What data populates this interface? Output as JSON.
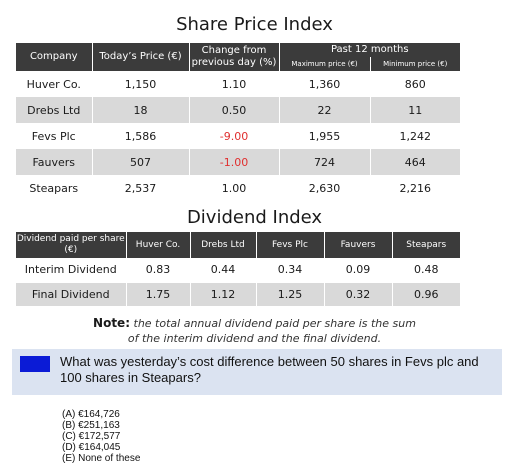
{
  "share": {
    "title": "Share Price Index",
    "headers": {
      "company": "Company",
      "today": "Today’s Price (€)",
      "change": "Change from previous day (%)",
      "past": "Past 12 months",
      "max": "Maximum price (€)",
      "min": "Minimum price (€)"
    },
    "rows": [
      {
        "company": "Huver Co.",
        "today": "1,150",
        "change": "1.10",
        "max": "1,360",
        "min": "860"
      },
      {
        "company": "Drebs Ltd",
        "today": "18",
        "change": "0.50",
        "max": "22",
        "min": "11"
      },
      {
        "company": "Fevs Plc",
        "today": "1,586",
        "change": "-9.00",
        "max": "1,955",
        "min": "1,242"
      },
      {
        "company": "Fauvers",
        "today": "507",
        "change": "-1.00",
        "max": "724",
        "min": "464"
      },
      {
        "company": "Steapars",
        "today": "2,537",
        "change": "1.00",
        "max": "2,630",
        "min": "2,216"
      }
    ]
  },
  "dividend": {
    "title": "Dividend Index",
    "headers": {
      "label": "Dividend paid per share (€)",
      "huver": "Huver Co.",
      "drebs": "Drebs Ltd",
      "fevs": "Fevs Plc",
      "fauvers": "Fauvers",
      "steapars": "Steapars"
    },
    "rows": [
      {
        "label": "Interim Dividend",
        "huver": "0.83",
        "drebs": "0.44",
        "fevs": "0.34",
        "fauvers": "0.09",
        "steapars": "0.48"
      },
      {
        "label": "Final Dividend",
        "huver": "1.75",
        "drebs": "1.12",
        "fevs": "1.25",
        "fauvers": "0.32",
        "steapars": "0.96"
      }
    ]
  },
  "note": {
    "label": "Note:",
    "line1": "the total annual dividend paid per share is the sum",
    "line2": "of the interim dividend and the final dividend."
  },
  "question": "What was yesterday’s cost difference between 50 shares in Fevs plc and 100 shares in Steapars?",
  "options": [
    "(A) €164,726",
    "(B) €251,163",
    "(C) €172,577",
    "(D) €164,045",
    "(E) None of these"
  ],
  "colors": {
    "header_bg": "#3b3b3b",
    "shade_row": "#d9d9d9",
    "negative": "#e03030",
    "question_bar": "#dbe3f1",
    "question_marker": "#0b1bd6"
  }
}
